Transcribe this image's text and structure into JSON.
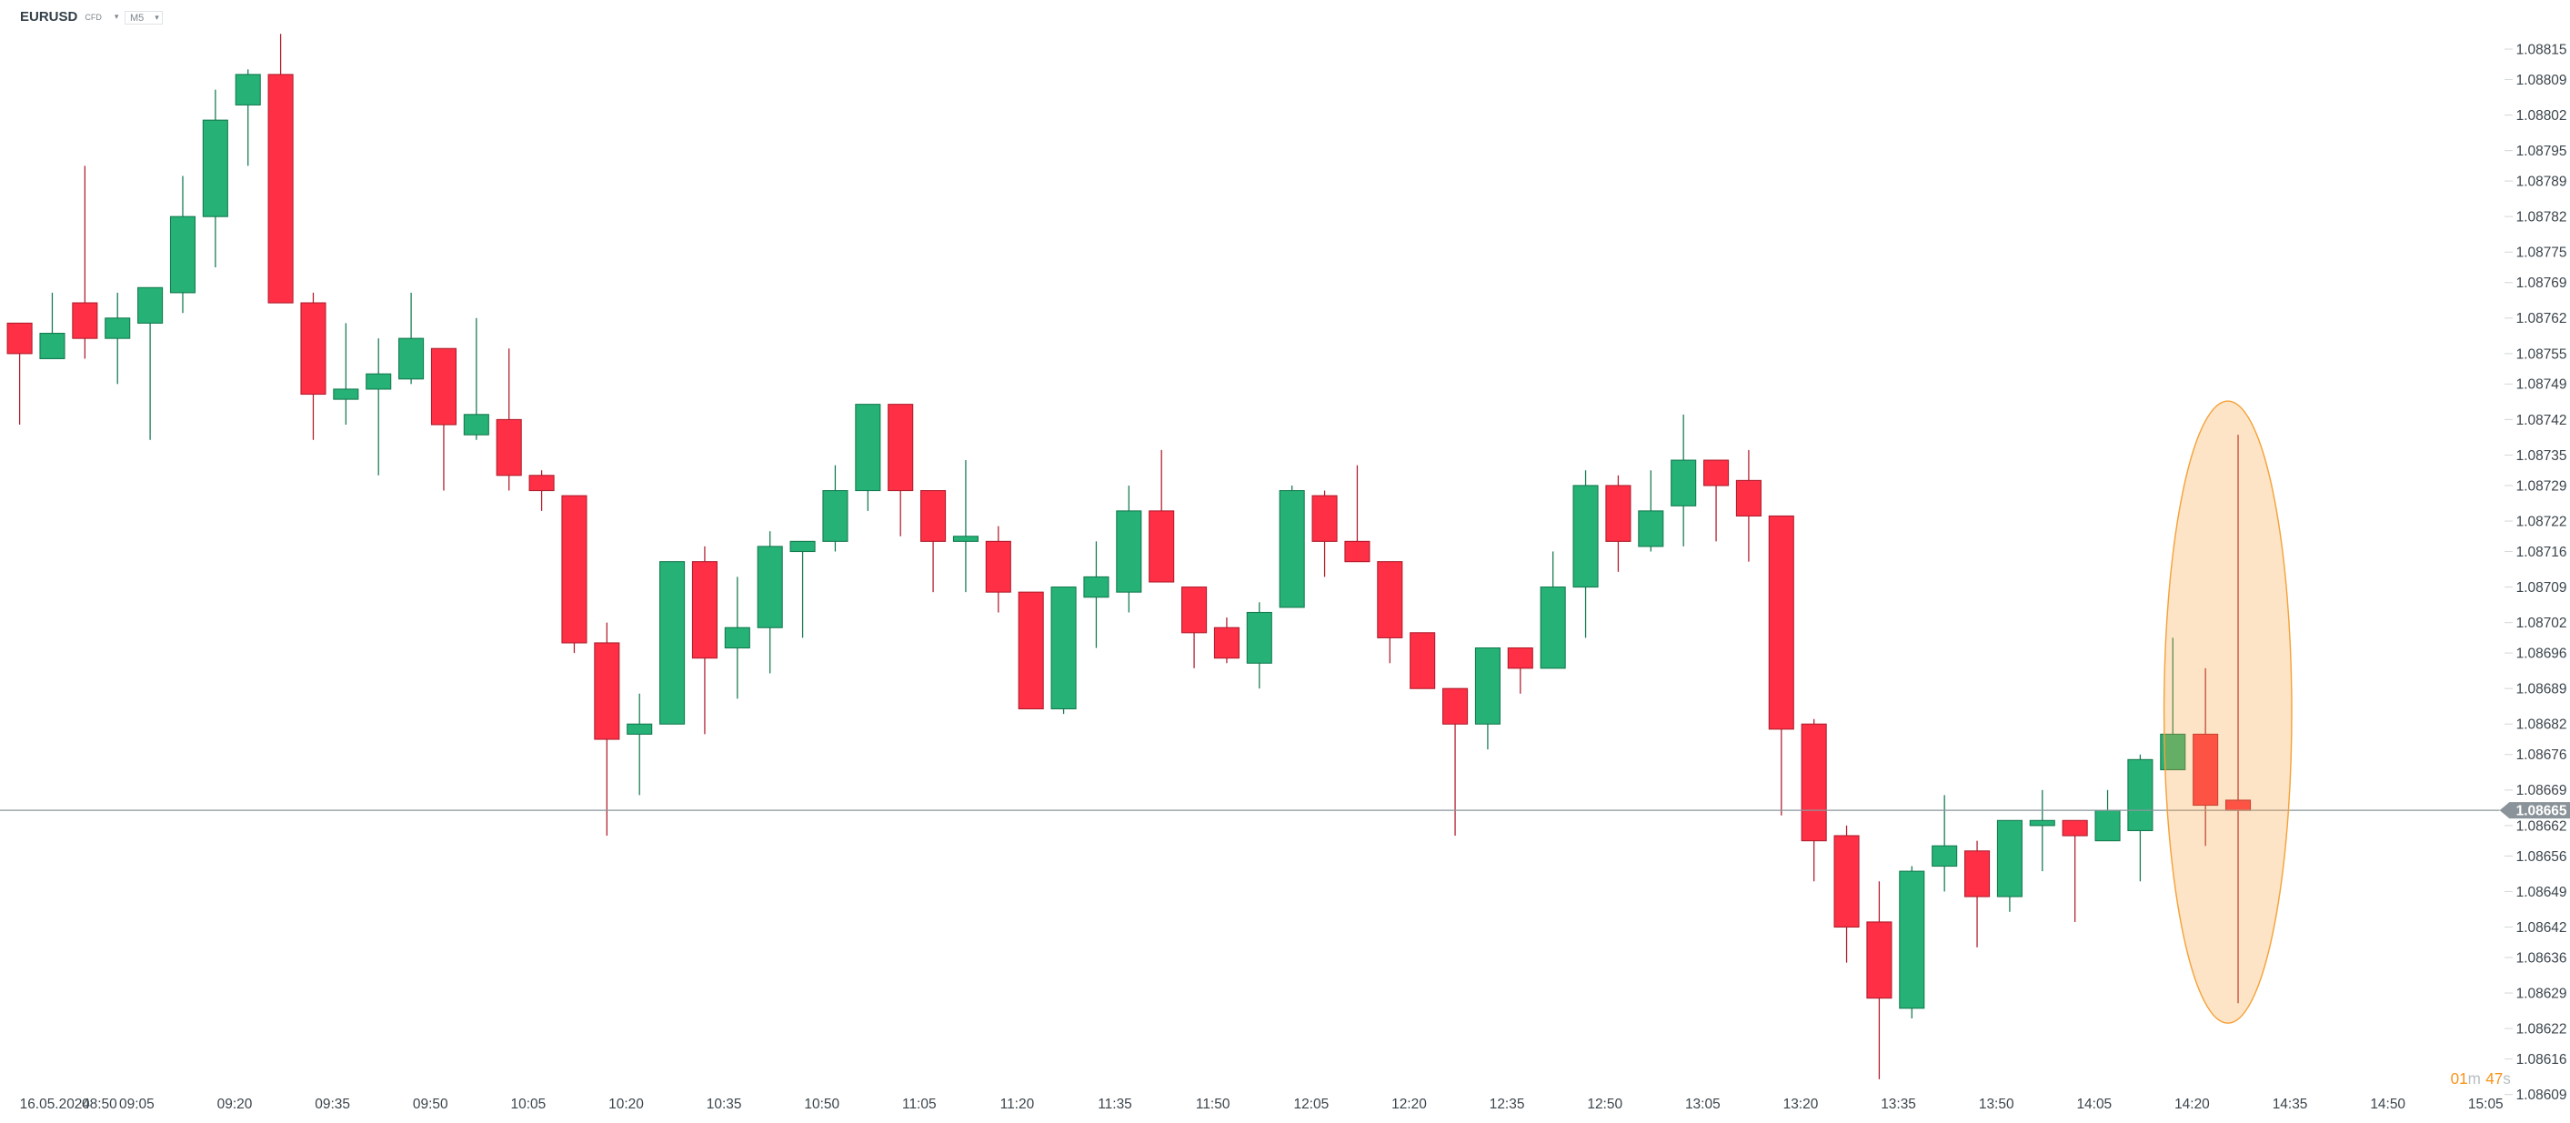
{
  "header": {
    "symbol": "EURUSD",
    "instrument_type": "CFD",
    "timeframe": "M5"
  },
  "colors": {
    "up": "#26b276",
    "up_border": "#137a4f",
    "down": "#ff3045",
    "down_border": "#b01c2c",
    "price_line": "#8a969c",
    "annotation": "#f7a642",
    "timer": "#f7931a"
  },
  "current_price": {
    "value": 1.08665,
    "label": "1.08665"
  },
  "timer": {
    "minutes": "01",
    "m": "m",
    "seconds": "47",
    "s": "s"
  },
  "chart_data": {
    "type": "candlestick",
    "symbol": "EURUSD",
    "timeframe": "M5",
    "date": "16.05.2024",
    "start_time": "08:50",
    "interval_minutes": 5,
    "ylim": [
      1.08609,
      1.08815
    ],
    "y_ticks": [
      "1.08815",
      "1.08809",
      "1.08802",
      "1.08795",
      "1.08789",
      "1.08782",
      "1.08775",
      "1.08769",
      "1.08762",
      "1.08755",
      "1.08749",
      "1.08742",
      "1.08735",
      "1.08729",
      "1.08722",
      "1.08716",
      "1.08709",
      "1.08702",
      "1.08696",
      "1.08689",
      "1.08682",
      "1.08676",
      "1.08669",
      "1.08662",
      "1.08656",
      "1.08649",
      "1.08642",
      "1.08636",
      "1.08629",
      "1.08622",
      "1.08616",
      "1.08609"
    ],
    "x_date_label": "16.05.2024",
    "x_ticks": [
      "08:50",
      "09:05",
      "09:20",
      "09:35",
      "09:50",
      "10:05",
      "10:20",
      "10:35",
      "10:50",
      "11:05",
      "11:20",
      "11:35",
      "11:50",
      "12:05",
      "12:20",
      "12:35",
      "12:50",
      "13:05",
      "13:20",
      "13:35",
      "13:50",
      "14:05",
      "14:20",
      "14:35",
      "14:50",
      "15:05"
    ],
    "ohlc": [
      [
        1.08761,
        1.08761,
        1.08741,
        1.08755
      ],
      [
        1.08754,
        1.08767,
        1.08754,
        1.08759
      ],
      [
        1.08765,
        1.08792,
        1.08754,
        1.08758
      ],
      [
        1.08758,
        1.08767,
        1.08749,
        1.08762
      ],
      [
        1.08761,
        1.08768,
        1.08738,
        1.08768
      ],
      [
        1.08767,
        1.0879,
        1.08763,
        1.08782
      ],
      [
        1.08782,
        1.08807,
        1.08772,
        1.08801
      ],
      [
        1.08804,
        1.08811,
        1.08792,
        1.0881
      ],
      [
        1.0881,
        1.08818,
        1.08765,
        1.08765
      ],
      [
        1.08765,
        1.08767,
        1.08738,
        1.08747
      ],
      [
        1.08746,
        1.08761,
        1.08741,
        1.08748
      ],
      [
        1.08748,
        1.08758,
        1.08731,
        1.08751
      ],
      [
        1.0875,
        1.08767,
        1.08749,
        1.08758
      ],
      [
        1.08756,
        1.08756,
        1.08728,
        1.08741
      ],
      [
        1.08739,
        1.08762,
        1.08738,
        1.08743
      ],
      [
        1.08742,
        1.08756,
        1.08728,
        1.08731
      ],
      [
        1.08731,
        1.08732,
        1.08724,
        1.08728
      ],
      [
        1.08727,
        1.08727,
        1.08696,
        1.08698
      ],
      [
        1.08698,
        1.08702,
        1.0866,
        1.08679
      ],
      [
        1.0868,
        1.08688,
        1.08668,
        1.08682
      ],
      [
        1.08682,
        1.08714,
        1.08682,
        1.08714
      ],
      [
        1.08714,
        1.08717,
        1.0868,
        1.08695
      ],
      [
        1.08697,
        1.08711,
        1.08687,
        1.08701
      ],
      [
        1.08701,
        1.0872,
        1.08692,
        1.08717
      ],
      [
        1.08716,
        1.08718,
        1.08699,
        1.08718
      ],
      [
        1.08718,
        1.08733,
        1.08716,
        1.08728
      ],
      [
        1.08728,
        1.08745,
        1.08724,
        1.08745
      ],
      [
        1.08745,
        1.08745,
        1.08719,
        1.08728
      ],
      [
        1.08728,
        1.08728,
        1.08708,
        1.08718
      ],
      [
        1.08718,
        1.08734,
        1.08708,
        1.08719
      ],
      [
        1.08718,
        1.08721,
        1.08704,
        1.08708
      ],
      [
        1.08708,
        1.08708,
        1.08685,
        1.08685
      ],
      [
        1.08685,
        1.08709,
        1.08684,
        1.08709
      ],
      [
        1.08707,
        1.08718,
        1.08697,
        1.08711
      ],
      [
        1.08708,
        1.08729,
        1.08704,
        1.08724
      ],
      [
        1.08724,
        1.08736,
        1.0871,
        1.0871
      ],
      [
        1.08709,
        1.08709,
        1.08693,
        1.087
      ],
      [
        1.08701,
        1.08703,
        1.08694,
        1.08695
      ],
      [
        1.08694,
        1.08706,
        1.08689,
        1.08704
      ],
      [
        1.08705,
        1.08729,
        1.08705,
        1.08728
      ],
      [
        1.08727,
        1.08728,
        1.08711,
        1.08718
      ],
      [
        1.08718,
        1.08733,
        1.08714,
        1.08714
      ],
      [
        1.08714,
        1.08714,
        1.08694,
        1.08699
      ],
      [
        1.087,
        1.087,
        1.08689,
        1.08689
      ],
      [
        1.08689,
        1.08689,
        1.0866,
        1.08682
      ],
      [
        1.08682,
        1.08697,
        1.08677,
        1.08697
      ],
      [
        1.08697,
        1.08697,
        1.08688,
        1.08693
      ],
      [
        1.08693,
        1.08716,
        1.08693,
        1.08709
      ],
      [
        1.08709,
        1.08732,
        1.08699,
        1.08729
      ],
      [
        1.08729,
        1.08731,
        1.08712,
        1.08718
      ],
      [
        1.08717,
        1.08732,
        1.08716,
        1.08724
      ],
      [
        1.08725,
        1.08743,
        1.08717,
        1.08734
      ],
      [
        1.08734,
        1.08734,
        1.08718,
        1.08729
      ],
      [
        1.0873,
        1.08736,
        1.08714,
        1.08723
      ],
      [
        1.08723,
        1.08723,
        1.08664,
        1.08681
      ],
      [
        1.08682,
        1.08683,
        1.08651,
        1.08659
      ],
      [
        1.0866,
        1.08662,
        1.08635,
        1.08642
      ],
      [
        1.08643,
        1.08651,
        1.08612,
        1.08628
      ],
      [
        1.08626,
        1.08654,
        1.08624,
        1.08653
      ],
      [
        1.08654,
        1.08668,
        1.08649,
        1.08658
      ],
      [
        1.08657,
        1.08659,
        1.08638,
        1.08648
      ],
      [
        1.08648,
        1.08663,
        1.08645,
        1.08663
      ],
      [
        1.08662,
        1.08669,
        1.08653,
        1.08663
      ],
      [
        1.08663,
        1.08663,
        1.08643,
        1.0866
      ],
      [
        1.08659,
        1.08669,
        1.08659,
        1.08665
      ],
      [
        1.08661,
        1.08676,
        1.08651,
        1.08675
      ],
      [
        1.08673,
        1.08699,
        1.08673,
        1.0868
      ],
      [
        1.0868,
        1.08693,
        1.08658,
        1.08666
      ],
      [
        1.08667,
        1.08739,
        1.08627,
        1.08665
      ]
    ]
  }
}
